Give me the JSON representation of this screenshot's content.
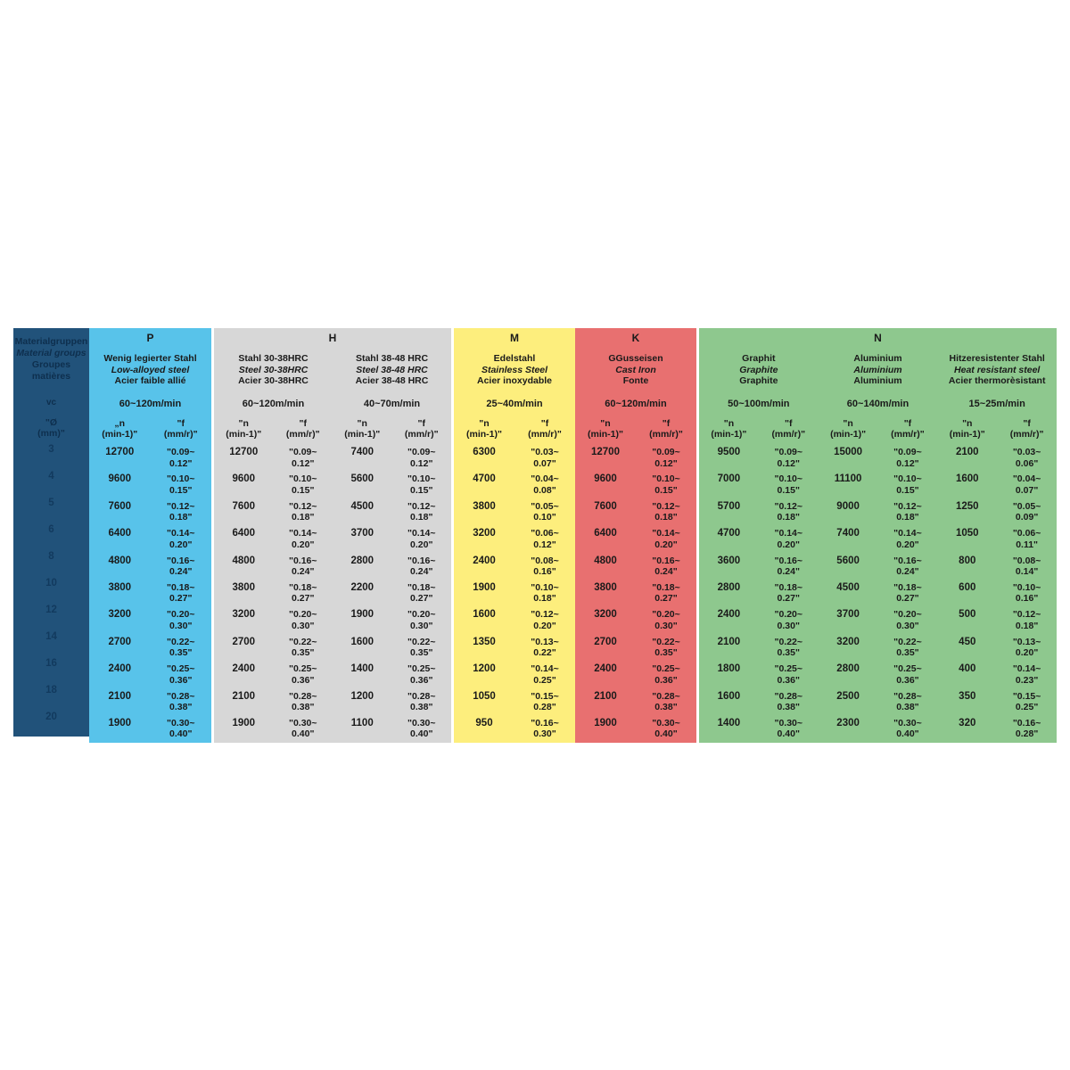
{
  "table": {
    "corner": {
      "title_lines": [
        "Materialgruppen",
        "Material groups",
        "Groupes matières"
      ],
      "vc_label": "vc",
      "dia_header_lines": [
        "\"Ø",
        "(mm)\""
      ],
      "diameters": [
        "3",
        "4",
        "5",
        "6",
        "8",
        "10",
        "12",
        "14",
        "16",
        "18",
        "20"
      ],
      "bg_color": "#21527a"
    },
    "groups": [
      {
        "letter": "P",
        "color": "#58c3ea",
        "materials": [
          {
            "name_lines": [
              "Wenig legierter Stahl",
              "Low-alloyed steel",
              "Acier faible allié"
            ],
            "vc": "60~120m/min",
            "n_header": [
              "„n",
              "(min-1)\""
            ],
            "f_header": [
              "\"f",
              "(mm/r)\""
            ],
            "rows": [
              [
                "12700",
                "\"0.09~",
                "0.12\""
              ],
              [
                "9600",
                "\"0.10~",
                "0.15\""
              ],
              [
                "7600",
                "\"0.12~",
                "0.18\""
              ],
              [
                "6400",
                "\"0.14~",
                "0.20\""
              ],
              [
                "4800",
                "\"0.16~",
                "0.24\""
              ],
              [
                "3800",
                "\"0.18~",
                "0.27\""
              ],
              [
                "3200",
                "\"0.20~",
                "0.30\""
              ],
              [
                "2700",
                "\"0.22~",
                "0.35\""
              ],
              [
                "2400",
                "\"0.25~",
                "0.36\""
              ],
              [
                "2100",
                "\"0.28~",
                "0.38\""
              ],
              [
                "1900",
                "\"0.30~",
                "0.40\""
              ]
            ]
          }
        ]
      },
      {
        "letter": "H",
        "color": "#d7d7d7",
        "materials": [
          {
            "name_lines": [
              "Stahl 30-38HRC",
              "Steel 30-38HRC",
              "Acier 30-38HRC"
            ],
            "vc": "60~120m/min",
            "n_header": [
              "\"n",
              "(min-1)\""
            ],
            "f_header": [
              "\"f",
              "(mm/r)\""
            ],
            "rows": [
              [
                "12700",
                "\"0.09~",
                "0.12\""
              ],
              [
                "9600",
                "\"0.10~",
                "0.15\""
              ],
              [
                "7600",
                "\"0.12~",
                "0.18\""
              ],
              [
                "6400",
                "\"0.14~",
                "0.20\""
              ],
              [
                "4800",
                "\"0.16~",
                "0.24\""
              ],
              [
                "3800",
                "\"0.18~",
                "0.27\""
              ],
              [
                "3200",
                "\"0.20~",
                "0.30\""
              ],
              [
                "2700",
                "\"0.22~",
                "0.35\""
              ],
              [
                "2400",
                "\"0.25~",
                "0.36\""
              ],
              [
                "2100",
                "\"0.28~",
                "0.38\""
              ],
              [
                "1900",
                "\"0.30~",
                "0.40\""
              ]
            ]
          },
          {
            "name_lines": [
              "Stahl 38-48 HRC",
              "Steel 38-48 HRC",
              "Acier 38-48 HRC"
            ],
            "vc": "40~70m/min",
            "n_header": [
              "\"n",
              "(min-1)\""
            ],
            "f_header": [
              "\"f",
              "(mm/r)\""
            ],
            "rows": [
              [
                "7400",
                "\"0.09~",
                "0.12\""
              ],
              [
                "5600",
                "\"0.10~",
                "0.15\""
              ],
              [
                "4500",
                "\"0.12~",
                "0.18\""
              ],
              [
                "3700",
                "\"0.14~",
                "0.20\""
              ],
              [
                "2800",
                "\"0.16~",
                "0.24\""
              ],
              [
                "2200",
                "\"0.18~",
                "0.27\""
              ],
              [
                "1900",
                "\"0.20~",
                "0.30\""
              ],
              [
                "1600",
                "\"0.22~",
                "0.35\""
              ],
              [
                "1400",
                "\"0.25~",
                "0.36\""
              ],
              [
                "1200",
                "\"0.28~",
                "0.38\""
              ],
              [
                "1100",
                "\"0.30~",
                "0.40\""
              ]
            ]
          }
        ]
      },
      {
        "letter": "M",
        "color": "#fdee7d",
        "materials": [
          {
            "name_lines": [
              "Edelstahl",
              "Stainless Steel",
              "Acier inoxydable"
            ],
            "vc": "25~40m/min",
            "n_header": [
              "\"n",
              "(min-1)\""
            ],
            "f_header": [
              "\"f",
              "(mm/r)\""
            ],
            "rows": [
              [
                "6300",
                "\"0.03~",
                "0.07\""
              ],
              [
                "4700",
                "\"0.04~",
                "0.08\""
              ],
              [
                "3800",
                "\"0.05~",
                "0.10\""
              ],
              [
                "3200",
                "\"0.06~",
                "0.12\""
              ],
              [
                "2400",
                "\"0.08~",
                "0.16\""
              ],
              [
                "1900",
                "\"0.10~",
                "0.18\""
              ],
              [
                "1600",
                "\"0.12~",
                "0.20\""
              ],
              [
                "1350",
                "\"0.13~",
                "0.22\""
              ],
              [
                "1200",
                "\"0.14~",
                "0.25\""
              ],
              [
                "1050",
                "\"0.15~",
                "0.28\""
              ],
              [
                "950",
                "\"0.16~",
                "0.30\""
              ]
            ]
          }
        ]
      },
      {
        "letter": "K",
        "color": "#e87070",
        "materials": [
          {
            "name_lines": [
              "GGusseisen",
              "Cast Iron",
              "Fonte"
            ],
            "vc": "60~120m/min",
            "n_header": [
              "\"n",
              "(min-1)\""
            ],
            "f_header": [
              "\"f",
              "(mm/r)\""
            ],
            "rows": [
              [
                "12700",
                "\"0.09~",
                "0.12\""
              ],
              [
                "9600",
                "\"0.10~",
                "0.15\""
              ],
              [
                "7600",
                "\"0.12~",
                "0.18\""
              ],
              [
                "6400",
                "\"0.14~",
                "0.20\""
              ],
              [
                "4800",
                "\"0.16~",
                "0.24\""
              ],
              [
                "3800",
                "\"0.18~",
                "0.27\""
              ],
              [
                "3200",
                "\"0.20~",
                "0.30\""
              ],
              [
                "2700",
                "\"0.22~",
                "0.35\""
              ],
              [
                "2400",
                "\"0.25~",
                "0.36\""
              ],
              [
                "2100",
                "\"0.28~",
                "0.38\""
              ],
              [
                "1900",
                "\"0.30~",
                "0.40\""
              ]
            ]
          }
        ]
      },
      {
        "letter": "N",
        "color": "#8ec88e",
        "materials": [
          {
            "name_lines": [
              "Graphit",
              "Graphite",
              "Graphite"
            ],
            "vc": "50~100m/min",
            "n_header": [
              "\"n",
              "(min-1)\""
            ],
            "f_header": [
              "\"f",
              "(mm/r)\""
            ],
            "rows": [
              [
                "9500",
                "\"0.09~",
                "0.12\""
              ],
              [
                "7000",
                "\"0.10~",
                "0.15\""
              ],
              [
                "5700",
                "\"0.12~",
                "0.18\""
              ],
              [
                "4700",
                "\"0.14~",
                "0.20\""
              ],
              [
                "3600",
                "\"0.16~",
                "0.24\""
              ],
              [
                "2800",
                "\"0.18~",
                "0.27\""
              ],
              [
                "2400",
                "\"0.20~",
                "0.30\""
              ],
              [
                "2100",
                "\"0.22~",
                "0.35\""
              ],
              [
                "1800",
                "\"0.25~",
                "0.36\""
              ],
              [
                "1600",
                "\"0.28~",
                "0.38\""
              ],
              [
                "1400",
                "\"0.30~",
                "0.40\""
              ]
            ]
          },
          {
            "name_lines": [
              "Aluminium",
              "Aluminium",
              "Aluminium"
            ],
            "vc": "60~140m/min",
            "n_header": [
              "\"n",
              "(min-1)\""
            ],
            "f_header": [
              "\"f",
              "(mm/r)\""
            ],
            "rows": [
              [
                "15000",
                "\"0.09~",
                "0.12\""
              ],
              [
                "11100",
                "\"0.10~",
                "0.15\""
              ],
              [
                "9000",
                "\"0.12~",
                "0.18\""
              ],
              [
                "7400",
                "\"0.14~",
                "0.20\""
              ],
              [
                "5600",
                "\"0.16~",
                "0.24\""
              ],
              [
                "4500",
                "\"0.18~",
                "0.27\""
              ],
              [
                "3700",
                "\"0.20~",
                "0.30\""
              ],
              [
                "3200",
                "\"0.22~",
                "0.35\""
              ],
              [
                "2800",
                "\"0.25~",
                "0.36\""
              ],
              [
                "2500",
                "\"0.28~",
                "0.38\""
              ],
              [
                "2300",
                "\"0.30~",
                "0.40\""
              ]
            ]
          },
          {
            "name_lines": [
              "Hitzeresistenter Stahl",
              "Heat resistant steel",
              "Acier thermorèsistant"
            ],
            "vc": "15~25m/min",
            "n_header": [
              "\"n",
              "(min-1)\""
            ],
            "f_header": [
              "\"f",
              "(mm/r)\""
            ],
            "rows": [
              [
                "2100",
                "\"0.03~",
                "0.06\""
              ],
              [
                "1600",
                "\"0.04~",
                "0.07\""
              ],
              [
                "1250",
                "\"0.05~",
                "0.09\""
              ],
              [
                "1050",
                "\"0.06~",
                "0.11\""
              ],
              [
                "800",
                "\"0.08~",
                "0.14\""
              ],
              [
                "600",
                "\"0.10~",
                "0.16\""
              ],
              [
                "500",
                "\"0.12~",
                "0.18\""
              ],
              [
                "450",
                "\"0.13~",
                "0.20\""
              ],
              [
                "400",
                "\"0.14~",
                "0.23\""
              ],
              [
                "350",
                "\"0.15~",
                "0.25\""
              ],
              [
                "320",
                "\"0.16~",
                "0.28\""
              ]
            ]
          }
        ]
      }
    ]
  }
}
